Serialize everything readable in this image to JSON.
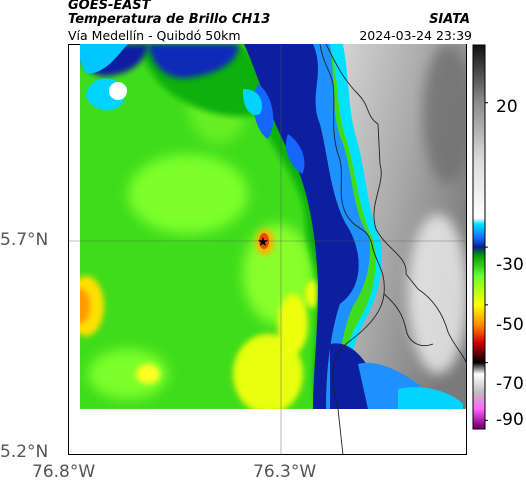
{
  "header": {
    "satellite": "GOES-EAST",
    "product": "Temperatura de Brillo CH13",
    "subtitle": "Vía Medellín - Quibdó 50km",
    "organization": "SIATA",
    "datetime": "2024-03-24 23:39"
  },
  "map": {
    "latitude_ticks": [
      "5.7°N",
      "5.2°N"
    ],
    "longitude_ticks": [
      "76.8°W",
      "76.3°W"
    ],
    "marker": "star-icon",
    "colors": {
      "warm_gray_light": "#e8e8e8",
      "warm_gray_dark": "#6e6e6e",
      "cyan": "#00d2ff",
      "blue": "#1e90ff",
      "dark_blue": "#0a1e96",
      "green": "#2ecc1a",
      "light_green": "#66ff33",
      "yellow": "#ffff00",
      "orange": "#ff8c00",
      "red": "#e60000"
    }
  },
  "colorbar": {
    "labels": [
      "20",
      "-30",
      "-50",
      "-70",
      "-90"
    ],
    "stops": [
      {
        "value": 40,
        "color": "#111111"
      },
      {
        "value": 20,
        "color": "#8c8c8c"
      },
      {
        "value": 0,
        "color": "#dcdcdc"
      },
      {
        "value": -20,
        "color": "#ffffff"
      },
      {
        "value": -22,
        "color": "#00e5ff"
      },
      {
        "value": -27,
        "color": "#1565ff"
      },
      {
        "value": -30,
        "color": "#0a1e8c"
      },
      {
        "value": -33,
        "color": "#00a000"
      },
      {
        "value": -40,
        "color": "#66ff33"
      },
      {
        "value": -50,
        "color": "#ffff00"
      },
      {
        "value": -57,
        "color": "#ff8c00"
      },
      {
        "value": -63,
        "color": "#d70000"
      },
      {
        "value": -70,
        "color": "#000000"
      },
      {
        "value": -74,
        "color": "#ffffff"
      },
      {
        "value": -80,
        "color": "#c0c0c0"
      },
      {
        "value": -86,
        "color": "#ff66ff"
      },
      {
        "value": -92,
        "color": "#800080"
      }
    ]
  }
}
